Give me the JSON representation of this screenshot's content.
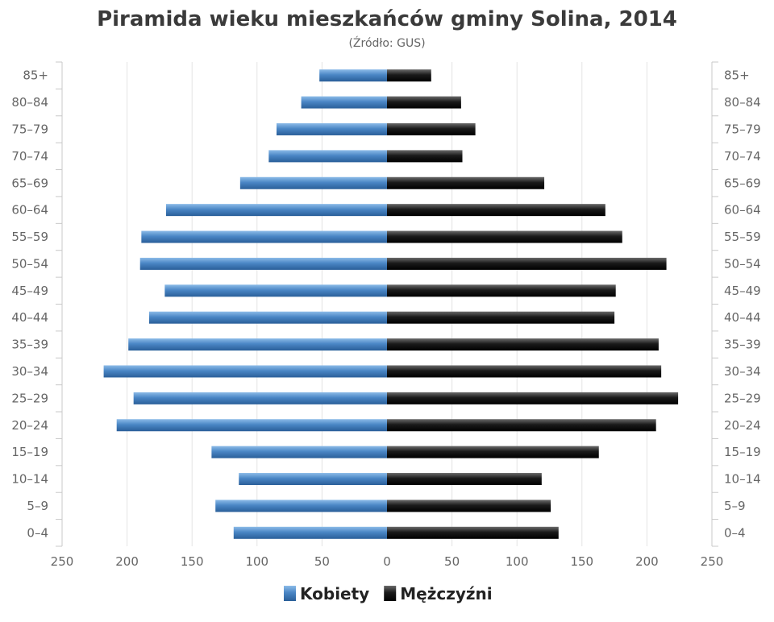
{
  "chart_data": {
    "type": "bar",
    "orientation": "horizontal",
    "layout": "population-pyramid",
    "title": "Piramida wieku mieszkańców gminy Solina, 2014",
    "subtitle": "(Źródło: GUS)",
    "categories": [
      "0–4",
      "5–9",
      "10–14",
      "15–19",
      "20–24",
      "25–29",
      "30–34",
      "35–39",
      "40–44",
      "45–49",
      "50–54",
      "55–59",
      "60–64",
      "65–69",
      "70–74",
      "75–79",
      "80–84",
      "85+"
    ],
    "series": [
      {
        "name": "Kobiety",
        "side": "left",
        "color": "#4a86c5",
        "values": [
          118,
          132,
          114,
          135,
          208,
          195,
          218,
          199,
          183,
          171,
          190,
          189,
          170,
          113,
          91,
          85,
          66,
          52
        ]
      },
      {
        "name": "Mężczyźni",
        "side": "right",
        "color": "#1a1a1a",
        "values": [
          132,
          126,
          119,
          163,
          207,
          224,
          211,
          209,
          175,
          176,
          215,
          181,
          168,
          121,
          58,
          68,
          57,
          34
        ]
      }
    ],
    "xlim": [
      -250,
      250
    ],
    "xticks": [
      -250,
      -200,
      -150,
      -100,
      -50,
      0,
      50,
      100,
      150,
      200,
      250
    ],
    "xtick_labels": [
      "250",
      "200",
      "150",
      "100",
      "50",
      "0",
      "50",
      "100",
      "150",
      "200",
      "250"
    ],
    "grid": true,
    "legend_position": "bottom-center"
  }
}
